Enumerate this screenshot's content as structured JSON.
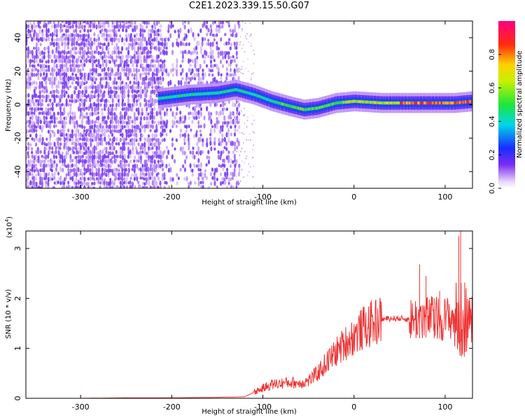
{
  "title": "C2E1.2023.339.15.50.G07",
  "chart_data": [
    {
      "type": "heatmap",
      "xlabel": "Height of straight line (km)",
      "ylabel": "Frequency (Hz)",
      "xlim": [
        -360,
        130
      ],
      "ylim": [
        -50,
        50
      ],
      "xticks": [
        -300,
        -200,
        -100,
        0,
        100
      ],
      "yticks": [
        -40,
        -20,
        0,
        20,
        40
      ],
      "colorbar": {
        "label": "Normalized spectral amplitude",
        "range": [
          0,
          1
        ],
        "ticks": [
          0.0,
          0.2,
          0.4,
          0.6,
          0.8
        ],
        "colormap": "rainbow: white/violet(0) - blue - cyan - green - yellow - red - magenta(1)"
      },
      "signal_track": [
        {
          "x": -210,
          "y": 4
        },
        {
          "x": -180,
          "y": 6
        },
        {
          "x": -150,
          "y": 7
        },
        {
          "x": -130,
          "y": 9
        },
        {
          "x": -110,
          "y": 6
        },
        {
          "x": -90,
          "y": 2
        },
        {
          "x": -70,
          "y": -1
        },
        {
          "x": -55,
          "y": -3
        },
        {
          "x": -40,
          "y": -2
        },
        {
          "x": -20,
          "y": 1
        },
        {
          "x": 0,
          "y": 2
        },
        {
          "x": 30,
          "y": 1
        },
        {
          "x": 60,
          "y": 1
        },
        {
          "x": 90,
          "y": 1
        },
        {
          "x": 110,
          "y": 1
        },
        {
          "x": 130,
          "y": 2
        }
      ]
    },
    {
      "type": "line",
      "xlabel": "Height of straight line (km)",
      "ylabel": "SNR (10 * v/v)",
      "yscale_label": "(x10^4)",
      "xlim": [
        -360,
        130
      ],
      "ylim": [
        0,
        3.35
      ],
      "xticks": [
        -300,
        -200,
        -100,
        0,
        100
      ],
      "yticks": [
        0,
        1,
        2,
        3
      ],
      "series_color": "#ee3333",
      "series": [
        {
          "x": [
            -360,
            -300,
            -250,
            -200,
            -150,
            -120,
            -110,
            -100,
            -90,
            -80,
            -70,
            -60,
            -50,
            -40,
            -30,
            -20,
            -10,
            0,
            10,
            20,
            30,
            40,
            50,
            60,
            70,
            80,
            90,
            100,
            110,
            115,
            118,
            120,
            125,
            130
          ],
          "values": [
            0.0,
            0.0,
            0.01,
            0.01,
            0.02,
            0.03,
            0.12,
            0.2,
            0.28,
            0.3,
            0.32,
            0.3,
            0.35,
            0.5,
            0.72,
            0.92,
            1.1,
            1.25,
            1.4,
            1.5,
            1.58,
            1.6,
            1.6,
            1.58,
            1.6,
            1.62,
            1.6,
            1.6,
            1.62,
            1.5,
            1.55,
            1.58,
            1.58,
            1.6
          ]
        }
      ],
      "spikes": [
        {
          "x": 72,
          "y": 2.68
        },
        {
          "x": 79,
          "y": 2.45
        },
        {
          "x": 88,
          "y": 2.0
        },
        {
          "x": 94,
          "y": 2.15
        },
        {
          "x": 115,
          "y": 3.25
        },
        {
          "x": 117,
          "y": 3.35
        }
      ]
    }
  ]
}
